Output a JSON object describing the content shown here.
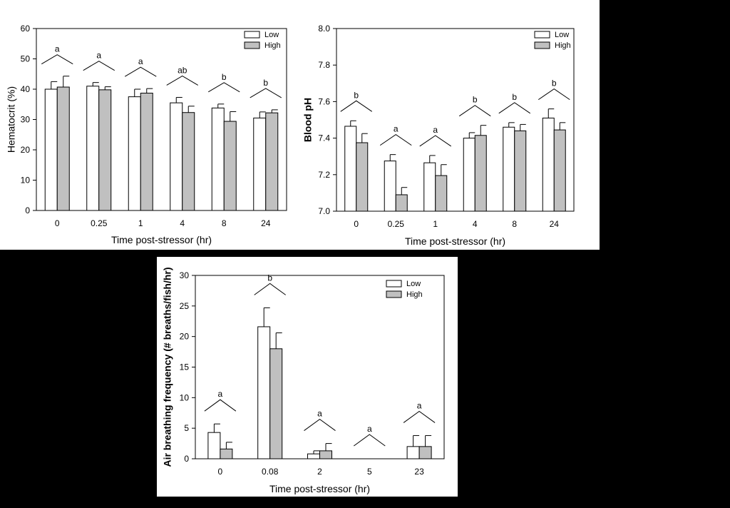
{
  "chart_data": [
    {
      "type": "bar",
      "categories": [
        "0",
        "0.25",
        "1",
        "4",
        "8",
        "24"
      ],
      "series": [
        {
          "name": "Low",
          "color": "#ffffff",
          "values": [
            40,
            41,
            37.5,
            35.5,
            33.8,
            30.5
          ],
          "errors": [
            2.5,
            1.2,
            2.5,
            1.8,
            1.3,
            2
          ]
        },
        {
          "name": "High",
          "color": "#c0c0c0",
          "values": [
            40.7,
            39.8,
            38.7,
            32.3,
            29.4,
            32.2
          ],
          "errors": [
            3.6,
            1,
            1.5,
            2.1,
            3.2,
            1
          ]
        }
      ],
      "group_labels": [
        "a",
        "a",
        "a",
        "ab",
        "b",
        "b"
      ],
      "xlabel": "Time post-stressor (hr)",
      "ylabel": "Hematocrit (%)",
      "ylim": [
        0,
        60
      ],
      "yticks": [
        0,
        10,
        20,
        30,
        40,
        50,
        60
      ],
      "legend": "top-right",
      "grid": false
    },
    {
      "type": "bar",
      "categories": [
        "0",
        "0.25",
        "1",
        "4",
        "8",
        "24"
      ],
      "series": [
        {
          "name": "Low",
          "color": "#ffffff",
          "values": [
            7.465,
            7.275,
            7.265,
            7.4,
            7.46,
            7.51
          ],
          "errors": [
            0.03,
            0.035,
            0.04,
            0.03,
            0.025,
            0.05
          ]
        },
        {
          "name": "High",
          "color": "#c0c0c0",
          "values": [
            7.375,
            7.09,
            7.195,
            7.415,
            7.44,
            7.445
          ],
          "errors": [
            0.05,
            0.04,
            0.06,
            0.055,
            0.035,
            0.04
          ]
        }
      ],
      "group_labels": [
        "b",
        "a",
        "a",
        "b",
        "b",
        "b"
      ],
      "xlabel": "Time post-stressor (hr)",
      "ylabel": "Blood pH",
      "ylim": [
        7.0,
        8.0
      ],
      "yticks": [
        "7.0",
        "7.2",
        "7.4",
        "7.6",
        "7.8",
        "8.0"
      ],
      "legend": "top-right",
      "grid": false
    },
    {
      "type": "bar",
      "categories": [
        "0",
        "0.08",
        "2",
        "5",
        "23"
      ],
      "series": [
        {
          "name": "Low",
          "color": "#ffffff",
          "values": [
            4.3,
            21.6,
            0.8,
            0,
            2
          ],
          "errors": [
            1.4,
            3.1,
            0.5,
            0,
            1.8
          ]
        },
        {
          "name": "High",
          "color": "#c0c0c0",
          "values": [
            1.6,
            18,
            1.3,
            0,
            2
          ],
          "errors": [
            1.1,
            2.6,
            1.2,
            0,
            1.8
          ]
        }
      ],
      "group_labels": [
        "a",
        "b",
        "a",
        "a",
        "a"
      ],
      "xlabel": "Time post-stressor (hr)",
      "ylabel": "Air breathing frequency (# breaths/fish/hr)",
      "ylim": [
        0,
        30
      ],
      "yticks": [
        0,
        5,
        10,
        15,
        20,
        25,
        30
      ],
      "legend": "top-right",
      "grid": false
    }
  ]
}
